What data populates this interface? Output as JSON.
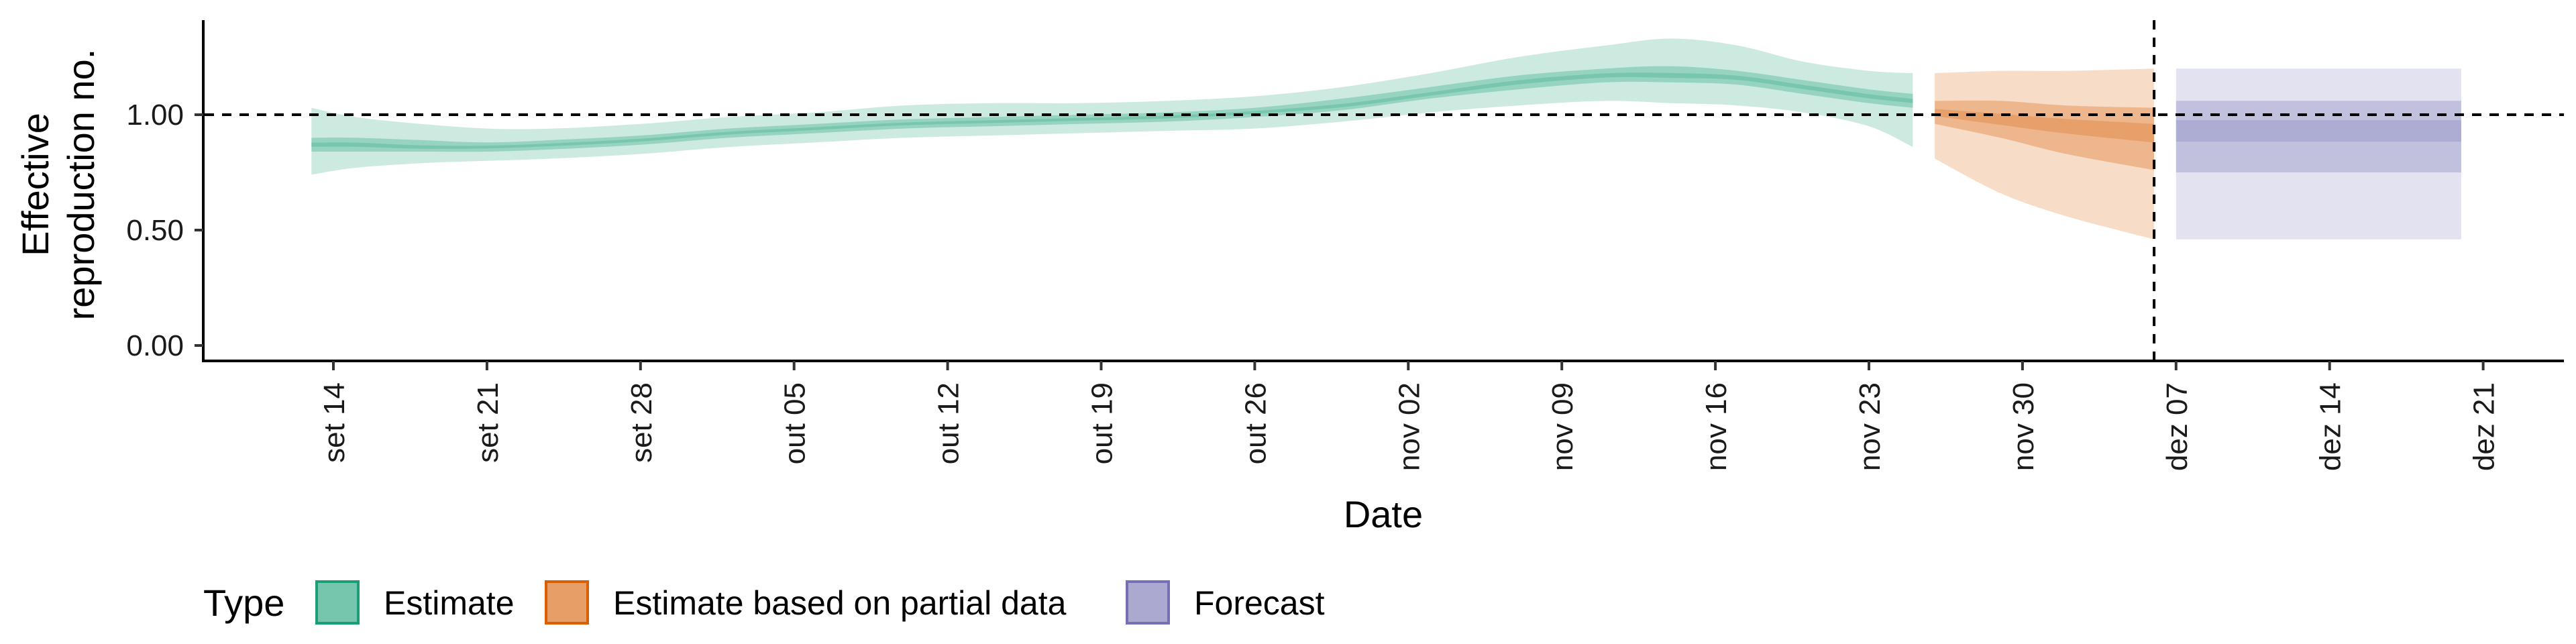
{
  "chart_data": {
    "type": "area",
    "xlabel": "Date",
    "ylabel": [
      "Effective",
      "reproduction no."
    ],
    "ylim": [
      0,
      1.4
    ],
    "y_ticks": [
      0,
      0.5,
      1.0
    ],
    "y_tick_labels": [
      "0.00",
      "0.50",
      "1.00"
    ],
    "x_range": [
      "2020-09-03",
      "2020-12-27"
    ],
    "x_ticks": [
      "2020-09-14",
      "2020-09-21",
      "2020-09-28",
      "2020-10-05",
      "2020-10-12",
      "2020-10-19",
      "2020-10-26",
      "2020-11-02",
      "2020-11-09",
      "2020-11-16",
      "2020-11-23",
      "2020-11-30",
      "2020-12-07",
      "2020-12-14",
      "2020-12-21"
    ],
    "x_tick_labels": [
      "set 14",
      "set 21",
      "set 28",
      "out 05",
      "out 12",
      "out 19",
      "out 26",
      "nov 02",
      "nov 09",
      "nov 16",
      "nov 23",
      "nov 30",
      "dez 07",
      "dez 14",
      "dez 21"
    ],
    "reference_line_y": 1.0,
    "reference_line_x": "2020-12-06",
    "legend": {
      "title": "Type",
      "position": "bottom",
      "items": [
        {
          "label": "Estimate",
          "color": "#1b9e77"
        },
        {
          "label": "Estimate based on partial data",
          "color": "#d95f02"
        },
        {
          "label": "Forecast",
          "color": "#7570b3"
        }
      ]
    },
    "series": [
      {
        "name": "Estimate",
        "color": "#1b9e77",
        "points": [
          {
            "date": "2020-09-13",
            "median": 0.87,
            "lo50": 0.84,
            "hi50": 0.9,
            "lo90": 0.74,
            "hi90": 1.03
          },
          {
            "date": "2020-09-15",
            "median": 0.87,
            "lo50": 0.84,
            "hi50": 0.9,
            "lo90": 0.77,
            "hi90": 0.99
          },
          {
            "date": "2020-09-18",
            "median": 0.86,
            "lo50": 0.84,
            "hi50": 0.89,
            "lo90": 0.79,
            "hi90": 0.96
          },
          {
            "date": "2020-09-21",
            "median": 0.86,
            "lo50": 0.84,
            "hi50": 0.88,
            "lo90": 0.8,
            "hi90": 0.94
          },
          {
            "date": "2020-09-24",
            "median": 0.87,
            "lo50": 0.85,
            "hi50": 0.89,
            "lo90": 0.81,
            "hi90": 0.94
          },
          {
            "date": "2020-09-28",
            "median": 0.89,
            "lo50": 0.87,
            "hi50": 0.91,
            "lo90": 0.83,
            "hi90": 0.96
          },
          {
            "date": "2020-10-02",
            "median": 0.92,
            "lo50": 0.9,
            "hi50": 0.94,
            "lo90": 0.86,
            "hi90": 0.99
          },
          {
            "date": "2020-10-06",
            "median": 0.94,
            "lo50": 0.92,
            "hi50": 0.96,
            "lo90": 0.88,
            "hi90": 1.01
          },
          {
            "date": "2020-10-10",
            "median": 0.96,
            "lo50": 0.94,
            "hi50": 0.98,
            "lo90": 0.9,
            "hi90": 1.04
          },
          {
            "date": "2020-10-14",
            "median": 0.97,
            "lo50": 0.95,
            "hi50": 0.99,
            "lo90": 0.91,
            "hi90": 1.05
          },
          {
            "date": "2020-10-18",
            "median": 0.98,
            "lo50": 0.96,
            "hi50": 1.0,
            "lo90": 0.92,
            "hi90": 1.05
          },
          {
            "date": "2020-10-22",
            "median": 0.99,
            "lo50": 0.97,
            "hi50": 1.01,
            "lo90": 0.93,
            "hi90": 1.06
          },
          {
            "date": "2020-10-26",
            "median": 1.01,
            "lo50": 0.99,
            "hi50": 1.03,
            "lo90": 0.94,
            "hi90": 1.08
          },
          {
            "date": "2020-10-30",
            "median": 1.04,
            "lo50": 1.02,
            "hi50": 1.07,
            "lo90": 0.97,
            "hi90": 1.12
          },
          {
            "date": "2020-11-03",
            "median": 1.09,
            "lo50": 1.07,
            "hi50": 1.12,
            "lo90": 1.01,
            "hi90": 1.18
          },
          {
            "date": "2020-11-07",
            "median": 1.14,
            "lo50": 1.11,
            "hi50": 1.17,
            "lo90": 1.04,
            "hi90": 1.25
          },
          {
            "date": "2020-11-11",
            "median": 1.17,
            "lo50": 1.14,
            "hi50": 1.2,
            "lo90": 1.06,
            "hi90": 1.3
          },
          {
            "date": "2020-11-14",
            "median": 1.17,
            "lo50": 1.14,
            "hi50": 1.21,
            "lo90": 1.05,
            "hi90": 1.33
          },
          {
            "date": "2020-11-17",
            "median": 1.16,
            "lo50": 1.13,
            "hi50": 1.19,
            "lo90": 1.04,
            "hi90": 1.3
          },
          {
            "date": "2020-11-20",
            "median": 1.12,
            "lo50": 1.09,
            "hi50": 1.15,
            "lo90": 1.01,
            "hi90": 1.23
          },
          {
            "date": "2020-11-23",
            "median": 1.08,
            "lo50": 1.05,
            "hi50": 1.11,
            "lo90": 0.95,
            "hi90": 1.19
          },
          {
            "date": "2020-11-25",
            "median": 1.06,
            "lo50": 1.03,
            "hi50": 1.09,
            "lo90": 0.86,
            "hi90": 1.18
          }
        ]
      },
      {
        "name": "Estimate based on partial data",
        "color": "#d95f02",
        "points": [
          {
            "date": "2020-11-26",
            "median": 1.01,
            "lo50": 0.96,
            "hi50": 1.06,
            "lo90": 0.81,
            "hi90": 1.18
          },
          {
            "date": "2020-11-29",
            "median": 0.98,
            "lo50": 0.9,
            "hi50": 1.06,
            "lo90": 0.66,
            "hi90": 1.19
          },
          {
            "date": "2020-12-02",
            "median": 0.95,
            "lo50": 0.83,
            "hi50": 1.04,
            "lo90": 0.56,
            "hi90": 1.19
          },
          {
            "date": "2020-12-06",
            "median": 0.92,
            "lo50": 0.76,
            "hi50": 1.03,
            "lo90": 0.46,
            "hi90": 1.2
          }
        ]
      },
      {
        "name": "Forecast",
        "color": "#7570b3",
        "points": [
          {
            "date": "2020-12-07",
            "median": 0.93,
            "lo50": 0.75,
            "hi50": 1.06,
            "lo90": 0.46,
            "hi90": 1.2
          },
          {
            "date": "2020-12-20",
            "median": 0.93,
            "lo50": 0.75,
            "hi50": 1.06,
            "lo90": 0.46,
            "hi90": 1.2
          }
        ]
      }
    ]
  }
}
